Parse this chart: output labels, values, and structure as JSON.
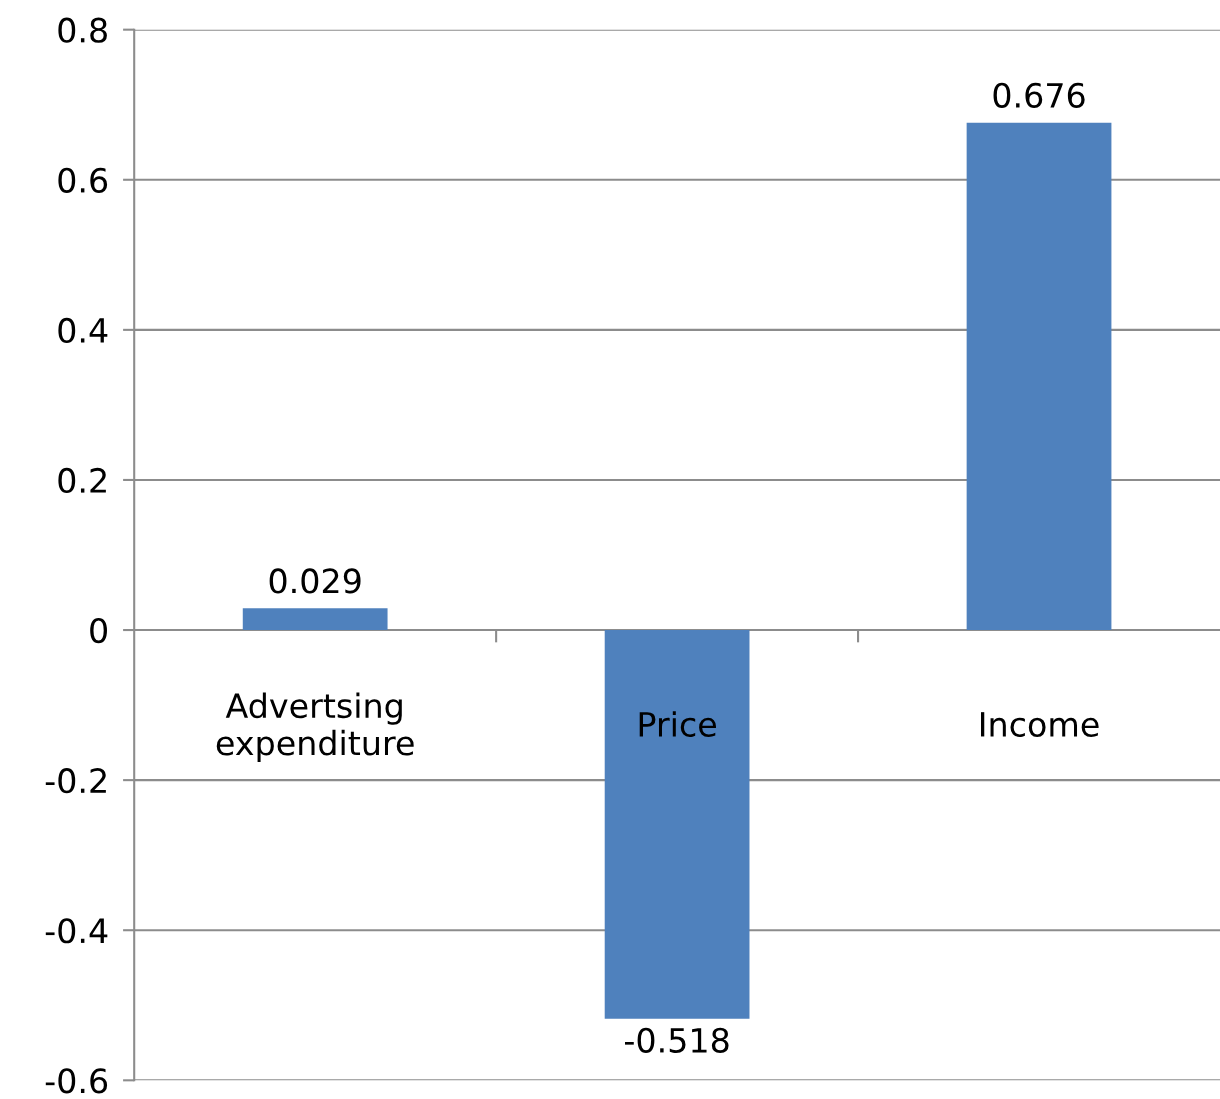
{
  "chart_data": {
    "type": "bar",
    "categories": [
      "Advertsing\nexpenditure",
      "Price",
      "Income"
    ],
    "values": [
      0.029,
      -0.518,
      0.676
    ],
    "color": "#4f81bd",
    "ylim": [
      -0.6,
      0.8
    ],
    "yticks": [
      -0.6,
      -0.4,
      -0.2,
      0,
      0.2,
      0.4,
      0.6,
      0.8
    ],
    "grid": "y",
    "data_labels": true,
    "legend": false
  }
}
